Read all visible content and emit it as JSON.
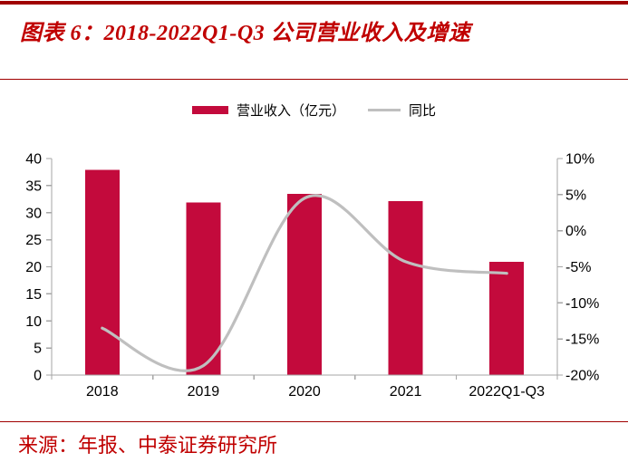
{
  "page": {
    "title": "图表 6：2018-2022Q1-Q3 公司营业收入及增速",
    "source": "来源：年报、中泰证券研究所"
  },
  "legend": {
    "bar_label": "营业收入（亿元）",
    "line_label": "同比"
  },
  "colors": {
    "bar": "#C30A3C",
    "line": "#BFBFBF",
    "axis": "#A6A6A6",
    "accent_red": "#C00000",
    "rule_red": "#A00000",
    "tick_text": "#000000"
  },
  "chart_data": {
    "type": "bar",
    "subtype": "combo-bar-line-dual-axis",
    "categories": [
      "2018",
      "2019",
      "2020",
      "2021",
      "2022Q1-Q3"
    ],
    "series": [
      {
        "name": "营业收入（亿元）",
        "type": "bar",
        "axis": "left",
        "values": [
          37.9,
          31.9,
          33.5,
          32.1,
          20.9
        ]
      },
      {
        "name": "同比",
        "type": "line",
        "axis": "right",
        "smooth": true,
        "values": [
          -13.5,
          -18.7,
          4.5,
          -4.3,
          -5.9
        ],
        "unit": "%"
      }
    ],
    "left_axis": {
      "min": 0,
      "max": 40,
      "step": 5,
      "tick_labels": [
        "0",
        "5",
        "10",
        "15",
        "20",
        "25",
        "30",
        "35",
        "40"
      ]
    },
    "right_axis": {
      "min": -20,
      "max": 10,
      "step": 5,
      "tick_labels": [
        "-20%",
        "-15%",
        "-10%",
        "-5%",
        "0%",
        "5%",
        "10%"
      ]
    },
    "grid": false,
    "legend_position": "top-center"
  }
}
